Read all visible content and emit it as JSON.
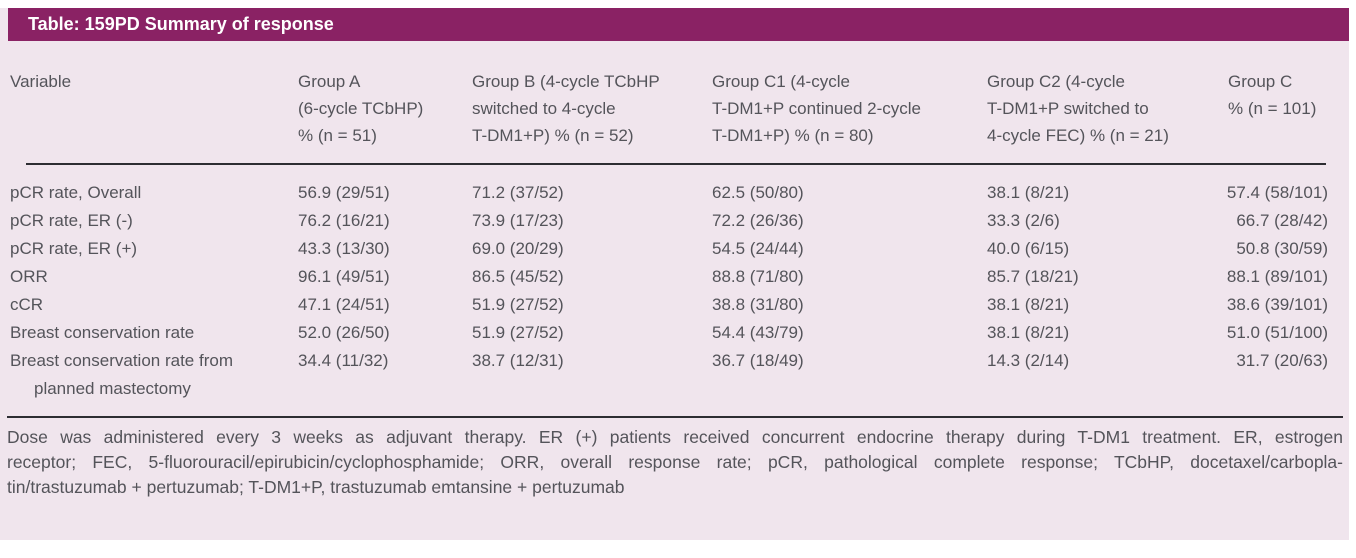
{
  "title": "Table: 159PD Summary of response",
  "colors": {
    "header_bar": "#8a2264",
    "panel_bg": "#f0e5ed",
    "text": "#54545a",
    "title_text": "#ffffff",
    "rule": "#2d2d32"
  },
  "table": {
    "columns": [
      {
        "id": "variable",
        "lines": [
          "Variable"
        ]
      },
      {
        "id": "group-a",
        "lines": [
          "Group A",
          "(6-cycle TCbHP)",
          "% (n = 51)"
        ]
      },
      {
        "id": "group-b",
        "lines": [
          "Group B (4-cycle TCbHP",
          "switched to 4-cycle",
          "T-DM1+P) % (n = 52)"
        ]
      },
      {
        "id": "group-c1",
        "lines": [
          "Group C1 (4-cycle",
          "T-DM1+P continued 2-cycle",
          "T-DM1+P) % (n = 80)"
        ]
      },
      {
        "id": "group-c2",
        "lines": [
          "Group C2 (4-cycle",
          "T-DM1+P switched to",
          "4-cycle FEC) % (n = 21)"
        ]
      },
      {
        "id": "group-c",
        "lines": [
          "Group C",
          "% (n = 101)"
        ]
      }
    ],
    "rows": [
      [
        "pCR rate, Overall",
        "56.9 (29/51)",
        "71.2 (37/52)",
        "62.5 (50/80)",
        "38.1 (8/21)",
        "57.4 (58/101)"
      ],
      [
        "pCR rate, ER (-)",
        "76.2 (16/21)",
        "73.9 (17/23)",
        "72.2 (26/36)",
        "33.3 (2/6)",
        "66.7 (28/42)"
      ],
      [
        "pCR rate, ER (+)",
        "43.3 (13/30)",
        "69.0 (20/29)",
        "54.5 (24/44)",
        "40.0 (6/15)",
        "50.8 (30/59)"
      ],
      [
        "ORR",
        "96.1 (49/51)",
        "86.5 (45/52)",
        "88.8 (71/80)",
        "85.7 (18/21)",
        "88.1 (89/101)"
      ],
      [
        "cCR",
        "47.1 (24/51)",
        "51.9 (27/52)",
        "38.8 (31/80)",
        "38.1 (8/21)",
        "38.6 (39/101)"
      ],
      [
        "Breast conservation rate",
        "52.0 (26/50)",
        "51.9 (27/52)",
        "54.4 (43/79)",
        "38.1 (8/21)",
        "51.0 (51/100)"
      ],
      [
        "Breast conservation rate from planned mastectomy",
        "34.4 (11/32)",
        "38.7 (12/31)",
        "36.7 (18/49)",
        "14.3 (2/14)",
        "31.7 (20/63)"
      ]
    ]
  },
  "footnote": {
    "lines": [
      "Dose was administered every 3 weeks as adjuvant therapy. ER (+) patients received concurrent endocrine therapy during T-DM1 treatment. ER, estrogen",
      "receptor; FEC, 5-fluorouracil/epirubicin/cyclophosphamide; ORR, overall response rate; pCR, pathological complete response; TCbHP, docetaxel/carbopla-",
      "tin/trastuzumab + pertuzumab; T-DM1+P, trastuzumab emtansine + pertuzumab"
    ]
  }
}
